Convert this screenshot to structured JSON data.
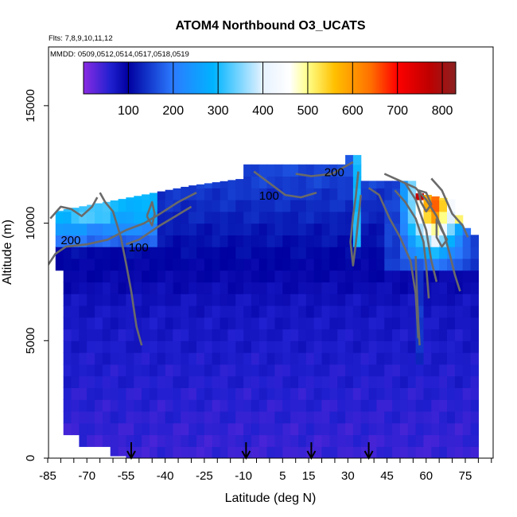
{
  "chart_data": {
    "type": "heatmap",
    "title": "ATOM4 Northbound O3_UCATS",
    "subtitle_flights": "Flts: 7,8,9,10,11,12",
    "subtitle_dates": "MMDD: 0509,0512,0514,0517,0518,0519",
    "xlabel": "Latitude (deg N)",
    "ylabel": "Altitude (m)",
    "xlim": [
      -85,
      85
    ],
    "ylim": [
      0,
      17500
    ],
    "x_ticks": [
      -85,
      -70,
      -55,
      -40,
      -25,
      -10,
      5,
      15,
      30,
      45,
      60,
      75
    ],
    "x_tick_labels": [
      "-85",
      "-70",
      "-55",
      "-40",
      "-25",
      "-10",
      "5",
      "15",
      "30",
      "45",
      "60",
      "75"
    ],
    "y_ticks": [
      0,
      5000,
      10000,
      15000
    ],
    "y_tick_labels": [
      "0",
      "5000",
      "10000",
      "15000"
    ],
    "colorbar": {
      "range": [
        0,
        830
      ],
      "tick_values": [
        100,
        200,
        300,
        400,
        500,
        600,
        700,
        800
      ],
      "tick_labels": [
        "100",
        "200",
        "300",
        "400",
        "500",
        "600",
        "700",
        "800"
      ],
      "stops": [
        {
          "v": 0,
          "color": "#8a2be2"
        },
        {
          "v": 60,
          "color": "#2020d0"
        },
        {
          "v": 100,
          "color": "#0000a0"
        },
        {
          "v": 200,
          "color": "#2b7bff"
        },
        {
          "v": 290,
          "color": "#00b4ff"
        },
        {
          "v": 400,
          "color": "#e6f2ff"
        },
        {
          "v": 460,
          "color": "#ffffff"
        },
        {
          "v": 500,
          "color": "#ffff88"
        },
        {
          "v": 560,
          "color": "#ffc000"
        },
        {
          "v": 640,
          "color": "#ff7000"
        },
        {
          "v": 700,
          "color": "#ff0000"
        },
        {
          "v": 770,
          "color": "#c00000"
        },
        {
          "v": 830,
          "color": "#8b2020"
        }
      ]
    },
    "contour_labels": [
      {
        "text": "200",
        "lat": -80,
        "alt": 9100
      },
      {
        "text": "100",
        "lat": -54,
        "alt": 8800
      },
      {
        "text": "100",
        "lat": -4,
        "alt": 11000
      },
      {
        "text": "200",
        "lat": 21,
        "alt": 12000
      }
    ],
    "profile_markers_lat": [
      -53,
      -9,
      16,
      38
    ],
    "grid": false,
    "legend": "colorbar at top"
  }
}
